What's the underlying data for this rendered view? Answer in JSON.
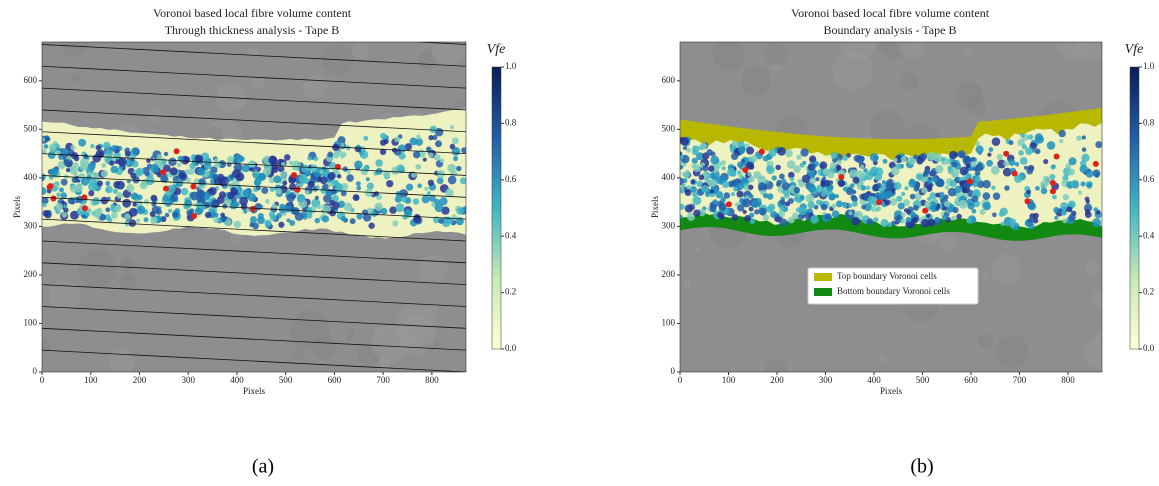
{
  "chart_data": [
    {
      "type": "image",
      "title": [
        "Voronoi based local fibre volume content",
        "Through thickness analysis - Tape B"
      ],
      "xlabel": "Pixels",
      "ylabel": "Pixels",
      "xlim": [
        0,
        870
      ],
      "ylim": [
        0,
        680
      ],
      "xticks": [
        0,
        100,
        200,
        300,
        400,
        500,
        600,
        700,
        800
      ],
      "yticks": [
        0,
        100,
        200,
        300,
        400,
        500,
        600
      ],
      "colorbar": {
        "label": "Vfe",
        "lim": [
          0,
          1
        ],
        "ticks": [
          {
            "value": 0,
            "label": "0.0"
          },
          0.2,
          0.4,
          0.6,
          0.8,
          {
            "value": 1,
            "label": "1.0"
          }
        ]
      },
      "panel_label": "(a)"
    },
    {
      "type": "image",
      "title": [
        "Voronoi based local fibre volume content",
        "Boundary analysis - Tape B"
      ],
      "xlabel": "Pixels",
      "ylabel": "Pixels",
      "xlim": [
        0,
        870
      ],
      "ylim": [
        0,
        680
      ],
      "xticks": [
        0,
        100,
        200,
        300,
        400,
        500,
        600,
        700,
        800
      ],
      "yticks": [
        0,
        100,
        200,
        300,
        400,
        500,
        600
      ],
      "colorbar": {
        "label": "Vfe",
        "lim": [
          0,
          1
        ],
        "ticks": [
          {
            "value": 0,
            "label": "0.0"
          },
          0.2,
          0.4,
          0.6,
          0.8,
          {
            "value": 1,
            "label": "1.0"
          }
        ]
      },
      "legend": [
        {
          "name": "Top boundary Voronoi cells",
          "color": "#b8b800"
        },
        {
          "name": "Bottom boundary Voronoi cells",
          "color": "#128a12"
        }
      ],
      "panel_label": "(b)"
    }
  ]
}
